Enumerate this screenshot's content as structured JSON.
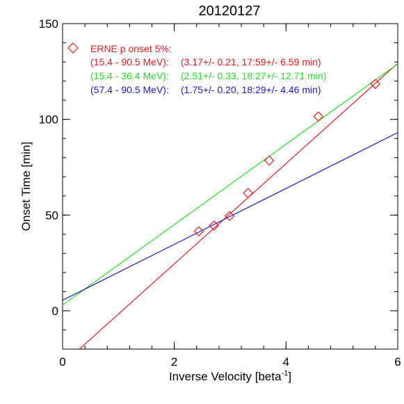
{
  "chart_data": {
    "type": "scatter",
    "title": "20120127",
    "xlabel": "Inverse Velocity [beta",
    "xlabel_sup": "-1",
    "xlabel_end": "]",
    "ylabel": "Onset Time [min]",
    "xlim": [
      0,
      6
    ],
    "ylim": [
      -20,
      150
    ],
    "x_ticks": [
      {
        "value": 0,
        "label": "0"
      },
      {
        "value": 2,
        "label": "2"
      },
      {
        "value": 4,
        "label": "4"
      },
      {
        "value": 6,
        "label": "6"
      }
    ],
    "y_ticks": [
      {
        "value": 0,
        "label": "0"
      },
      {
        "value": 50,
        "label": "50"
      },
      {
        "value": 100,
        "label": "100"
      },
      {
        "value": 150,
        "label": "150"
      }
    ],
    "x_minor_step": 0.4,
    "y_minor_step": 10,
    "grid": false,
    "legend_position": "top-left",
    "legend": {
      "marker_label": "ERNE p onset 5%:",
      "entries": [
        {
          "range": "(15.4 - 90.5 MeV):",
          "fit": "(3.17+/- 0.21, 17:59+/-  6.59 min)",
          "color": "#e41a1a"
        },
        {
          "range": "(15.4 - 36.4 MeV):",
          "fit": "(2.51+/- 0.33, 18:27+/- 12.71 min)",
          "color": "#22dd22"
        },
        {
          "range": "(57.4 - 90.5 MeV):",
          "fit": "(1.75+/- 0.20, 18:29+/-  4.46 min)",
          "color": "#1a1acc"
        }
      ]
    },
    "points": {
      "color": "#e41a1a",
      "marker": "diamond",
      "x": [
        2.44,
        2.71,
        2.99,
        3.32,
        3.7,
        4.58,
        5.6
      ],
      "y": [
        41.5,
        44.5,
        49.5,
        61.5,
        78.5,
        101.5,
        118.5
      ]
    },
    "fit_lines": [
      {
        "color": "#e41a1a",
        "slope": 26.2,
        "intercept": -27.9
      },
      {
        "color": "#22dd22",
        "slope": 21.0,
        "intercept": 3.0
      },
      {
        "color": "#1a1acc",
        "slope": 14.6,
        "intercept": 5.5
      }
    ]
  }
}
